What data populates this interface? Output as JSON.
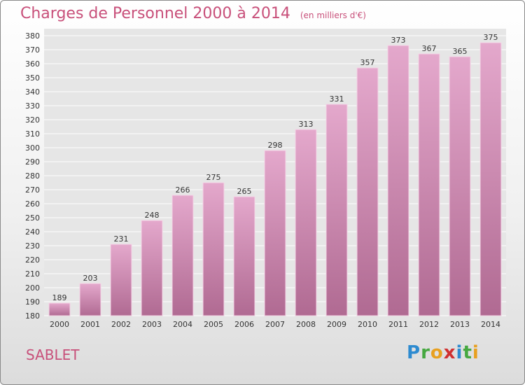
{
  "header": {
    "title": "Charges de Personnel 2000 à 2014",
    "subtitle": "(en milliers d'€)"
  },
  "footer": {
    "place": "SABLET",
    "logo": "Proxiti"
  },
  "colors": {
    "bar_top": "#e4a8cc",
    "bar_bottom": "#b06a92",
    "title": "#c8507a",
    "grid": "#ffffff",
    "plot_bg": "#e6e6e6"
  },
  "chart_data": {
    "type": "bar",
    "categories": [
      "2000",
      "2001",
      "2002",
      "2003",
      "2004",
      "2005",
      "2006",
      "2007",
      "2008",
      "2009",
      "2010",
      "2011",
      "2012",
      "2013",
      "2014"
    ],
    "values": [
      189,
      203,
      231,
      248,
      266,
      275,
      265,
      298,
      313,
      331,
      357,
      373,
      367,
      365,
      375
    ],
    "ylim": [
      180,
      380
    ],
    "ytick_step": 10,
    "grid": true
  }
}
